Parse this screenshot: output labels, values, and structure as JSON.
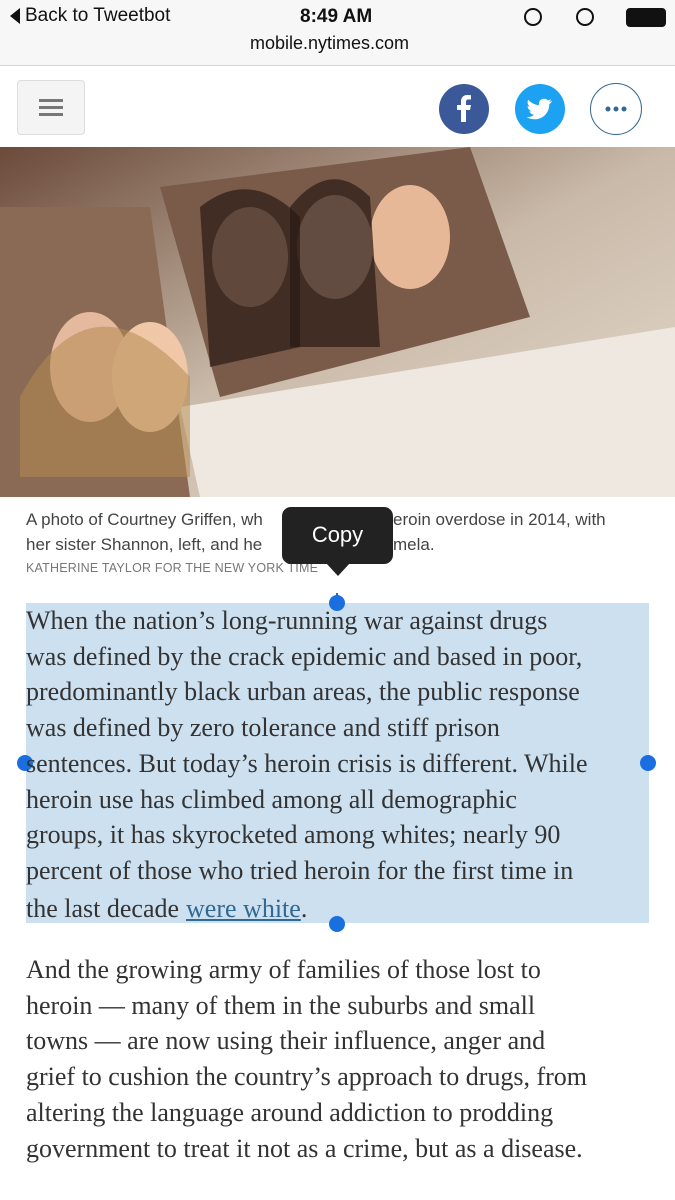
{
  "status_bar": {
    "back": "Back to Tweetbot",
    "time": "8:49 AM",
    "url": "mobile.nytimes.com"
  },
  "caption": {
    "line1_left": "A photo of Courtney Griffen, wh",
    "line1_right": "eroin overdose in 2014, with",
    "line2_left": "her sister Shannon, left, and he",
    "line2_right": "mela.",
    "credit": "KATHERINE TAYLOR FOR THE NEW YORK TIME"
  },
  "popup": {
    "label": "Copy"
  },
  "paragraphs": [
    {
      "lines": [
        "When the nation’s long-running war against drugs",
        "was defined by the crack epidemic and based in poor,",
        "predominantly black urban areas, the public response",
        "was defined by zero tolerance and stiff prison",
        "sentences. But today’s heroin crisis is different. While",
        "heroin use has climbed among all demographic",
        "groups, it has skyrocketed among whites; nearly 90",
        "percent of those who tried heroin for the first time in"
      ],
      "last_line": {
        "before": "the last decade",
        "link": "were white",
        "after": "."
      }
    },
    {
      "lines": [
        "And the growing army of families of those lost to",
        "heroin — many of them in the suburbs and small",
        "towns — are now using their influence, anger and",
        "grief to cushion the country’s approach to drugs, from",
        "altering the language around addiction to prodding",
        "government to treat it not as a crime, but as a disease."
      ]
    }
  ]
}
